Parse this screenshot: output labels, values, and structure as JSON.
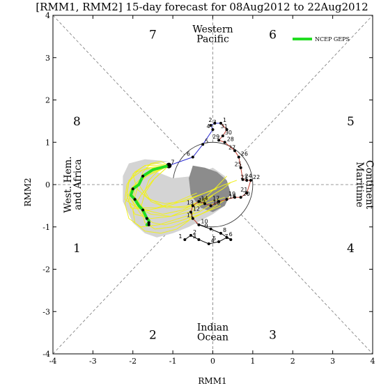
{
  "chart_data": {
    "type": "line",
    "title": "[RMM1, RMM2] 15-day forecast for 08Aug2012 to 22Aug2012",
    "xlabel": "RMM1",
    "ylabel": "RMM2",
    "xlim": [
      -4,
      4
    ],
    "ylim": [
      -4,
      4
    ],
    "x_ticks": [
      "-4",
      "-3",
      "-2",
      "-1",
      "0",
      "1",
      "2",
      "3",
      "4"
    ],
    "y_ticks": [
      "-4",
      "-3",
      "-2",
      "-1",
      "0",
      "1",
      "2",
      "3",
      "4"
    ],
    "grid": false,
    "legend_position": "top-right",
    "phases": [
      {
        "label": "1",
        "x": -3.4,
        "y": -1.5
      },
      {
        "label": "2",
        "x": -1.5,
        "y": -3.55
      },
      {
        "label": "3",
        "x": 1.5,
        "y": -3.55
      },
      {
        "label": "4",
        "x": 3.45,
        "y": -1.5
      },
      {
        "label": "5",
        "x": 3.45,
        "y": 1.5
      },
      {
        "label": "6",
        "x": 1.5,
        "y": 3.55
      },
      {
        "label": "7",
        "x": -1.5,
        "y": 3.55
      },
      {
        "label": "8",
        "x": -3.4,
        "y": 1.5
      }
    ],
    "regions": [
      {
        "name": "western_pacific",
        "lines": [
          "Western",
          "Pacific"
        ]
      },
      {
        "name": "indian_ocean",
        "lines": [
          "Indian",
          "Ocean"
        ]
      },
      {
        "name": "west_hem_africa",
        "lines": [
          "West. Hem.",
          "and Africa"
        ]
      },
      {
        "name": "maritime_continent",
        "lines": [
          "Maritime",
          "Continent"
        ]
      }
    ],
    "observed": {
      "color_early": "#000000",
      "color_mid": "#c0392b",
      "color_late": "#2a2ad0",
      "points": [
        {
          "day": "1",
          "x": -0.7,
          "y": -1.3
        },
        {
          "day": "2",
          "x": -0.55,
          "y": -1.2
        },
        {
          "day": "3",
          "x": -0.35,
          "y": -1.3
        },
        {
          "day": "4",
          "x": -0.1,
          "y": -1.4
        },
        {
          "day": "5",
          "x": 0.15,
          "y": -1.35
        },
        {
          "day": "6",
          "x": 0.35,
          "y": -1.25
        },
        {
          "day": "7",
          "x": 0.45,
          "y": -1.3
        },
        {
          "day": "8",
          "x": 0.2,
          "y": -1.15
        },
        {
          "day": "9",
          "x": -0.05,
          "y": -1.05
        },
        {
          "day": "10",
          "x": -0.35,
          "y": -0.95
        },
        {
          "day": "11",
          "x": -0.5,
          "y": -0.8
        },
        {
          "day": "12",
          "x": -0.55,
          "y": -0.65
        },
        {
          "day": "13",
          "x": -0.5,
          "y": -0.5
        },
        {
          "day": "14",
          "x": -0.35,
          "y": -0.4
        },
        {
          "day": "15",
          "x": -0.2,
          "y": -0.45
        },
        {
          "day": "16",
          "x": -0.05,
          "y": -0.5
        },
        {
          "day": "17",
          "x": 0.15,
          "y": -0.4
        },
        {
          "day": "18",
          "x": 0.35,
          "y": -0.35
        },
        {
          "day": "19",
          "x": 0.55,
          "y": -0.3
        },
        {
          "day": "20",
          "x": 0.7,
          "y": -0.3
        },
        {
          "day": "21",
          "x": 0.85,
          "y": -0.2
        },
        {
          "day": "22",
          "x": 0.95,
          "y": 0.1
        },
        {
          "day": "23",
          "x": 0.85,
          "y": 0.1
        },
        {
          "day": "24",
          "x": 0.75,
          "y": 0.12
        },
        {
          "day": "25",
          "x": 0.7,
          "y": 0.4
        },
        {
          "day": "26",
          "x": 0.65,
          "y": 0.65
        },
        {
          "day": "27",
          "x": 0.55,
          "y": 0.8
        },
        {
          "day": "28",
          "x": 0.3,
          "y": 1.0
        },
        {
          "day": "29",
          "x": 0.15,
          "y": 1.05
        },
        {
          "day": "30",
          "x": 0.25,
          "y": 1.15
        },
        {
          "day": "31",
          "x": 0.35,
          "y": 1.3
        },
        {
          "day": "1",
          "x": 0.2,
          "y": 1.45
        },
        {
          "day": "2",
          "x": 0.05,
          "y": 1.45
        },
        {
          "day": "3",
          "x": -0.05,
          "y": 1.4
        },
        {
          "day": "4",
          "x": 0.0,
          "y": 1.3
        },
        {
          "day": "5",
          "x": -0.25,
          "y": 0.95
        },
        {
          "day": "6",
          "x": -0.5,
          "y": 0.65
        },
        {
          "day": "7",
          "x": -1.1,
          "y": 0.45
        }
      ]
    },
    "ensemble_mean": {
      "name": "NCEP GEPS",
      "color": "#22dd22",
      "x": [
        -1.1,
        -1.5,
        -1.75,
        -1.85,
        -2.0,
        -2.05,
        -1.95,
        -1.85,
        -1.75,
        -1.7,
        -1.65,
        -1.6,
        -1.6,
        -1.65,
        -1.6
      ],
      "y": [
        0.45,
        0.35,
        0.2,
        0.0,
        -0.1,
        -0.25,
        -0.35,
        -0.5,
        -0.6,
        -0.7,
        -0.8,
        -0.85,
        -0.9,
        -0.95,
        -0.95
      ]
    },
    "members_color": "#f0f020",
    "members": [
      {
        "x": [
          -1.1,
          -1.6,
          -1.9,
          -2.1,
          -2.15,
          -2.05,
          -1.6,
          -1.1,
          -0.5,
          0.1
        ],
        "y": [
          0.45,
          0.4,
          0.3,
          0.05,
          -0.25,
          -0.55,
          -0.6,
          -0.5,
          -0.3,
          -0.1
        ]
      },
      {
        "x": [
          -1.1,
          -1.55,
          -1.85,
          -2.05,
          -2.1,
          -1.95,
          -1.55,
          -1.05,
          -0.55,
          -0.15
        ],
        "y": [
          0.45,
          0.3,
          0.1,
          -0.1,
          -0.4,
          -0.7,
          -0.8,
          -0.75,
          -0.55,
          -0.35
        ]
      },
      {
        "x": [
          -1.1,
          -1.4,
          -1.7,
          -1.95,
          -2.15,
          -2.2,
          -1.9,
          -1.4,
          -0.9,
          -0.4
        ],
        "y": [
          0.45,
          0.5,
          0.45,
          0.3,
          0.0,
          -0.35,
          -0.55,
          -0.55,
          -0.4,
          -0.2
        ]
      },
      {
        "x": [
          -1.1,
          -1.6,
          -1.95,
          -2.0,
          -1.8,
          -1.5,
          -1.2,
          -0.8,
          -0.3,
          0.2
        ],
        "y": [
          0.45,
          0.25,
          -0.05,
          -0.4,
          -0.7,
          -0.9,
          -0.95,
          -0.85,
          -0.7,
          -0.5
        ]
      },
      {
        "x": [
          -1.1,
          -1.45,
          -1.7,
          -1.8,
          -1.7,
          -1.45,
          -1.0,
          -0.5,
          0.0,
          0.4
        ],
        "y": [
          0.45,
          0.15,
          -0.2,
          -0.55,
          -0.9,
          -1.05,
          -1.0,
          -0.8,
          -0.55,
          -0.3
        ]
      },
      {
        "x": [
          -1.1,
          -1.7,
          -2.0,
          -1.9,
          -1.6,
          -1.2,
          -0.7,
          -0.2,
          0.3,
          0.6
        ],
        "y": [
          0.45,
          0.45,
          0.25,
          -0.1,
          -0.35,
          -0.45,
          -0.4,
          -0.2,
          0.0,
          0.1
        ]
      },
      {
        "x": [
          -1.1,
          -1.5,
          -1.8,
          -2.0,
          -1.95,
          -1.7,
          -1.3,
          -0.9,
          -0.6,
          -0.45
        ],
        "y": [
          0.45,
          0.1,
          -0.25,
          -0.6,
          -0.9,
          -1.1,
          -1.15,
          -1.05,
          -0.85,
          -0.6
        ]
      },
      {
        "x": [
          -1.1,
          -1.3,
          -1.55,
          -1.75,
          -1.85,
          -1.65,
          -1.25,
          -0.75,
          -0.2,
          0.3
        ],
        "y": [
          0.45,
          0.55,
          0.5,
          0.3,
          0.0,
          -0.3,
          -0.5,
          -0.55,
          -0.45,
          -0.3
        ]
      },
      {
        "x": [
          -1.1,
          -1.55,
          -1.85,
          -1.95,
          -1.7,
          -1.25,
          -0.75,
          -0.25,
          0.1,
          0.35
        ],
        "y": [
          0.45,
          0.35,
          0.05,
          -0.3,
          -0.6,
          -0.7,
          -0.6,
          -0.35,
          -0.05,
          0.2
        ]
      },
      {
        "x": [
          -1.1,
          -1.65,
          -2.05,
          -2.2,
          -2.1,
          -1.8,
          -1.35,
          -0.85,
          -0.35,
          0.0
        ],
        "y": [
          0.45,
          0.2,
          -0.1,
          -0.45,
          -0.8,
          -1.0,
          -0.95,
          -0.8,
          -0.65,
          -0.45
        ]
      },
      {
        "x": [
          -1.1,
          -1.4,
          -1.6,
          -1.7,
          -1.55,
          -1.15,
          -0.6,
          -0.1,
          0.25,
          0.45
        ],
        "y": [
          0.45,
          0.3,
          0.1,
          -0.15,
          -0.4,
          -0.55,
          -0.5,
          -0.3,
          -0.1,
          0.05
        ]
      },
      {
        "x": [
          -1.1,
          -1.75,
          -2.1,
          -2.15,
          -1.95,
          -1.55,
          -1.05,
          -0.6,
          -0.25,
          0.0
        ],
        "y": [
          0.45,
          0.35,
          0.1,
          -0.2,
          -0.5,
          -0.7,
          -0.75,
          -0.65,
          -0.45,
          -0.25
        ]
      }
    ],
    "plume_outer": {
      "color": "#d4d4d4",
      "x": [
        -1.1,
        -1.7,
        -2.1,
        -2.25,
        -2.25,
        -2.0,
        -1.7,
        -1.4,
        -1.0,
        -0.6,
        -0.3,
        0.0,
        0.3,
        0.45,
        0.3,
        0.0,
        -0.5,
        -1.0,
        -1.4,
        -1.7
      ],
      "y": [
        0.55,
        0.6,
        0.5,
        0.2,
        -0.4,
        -0.9,
        -1.15,
        -1.25,
        -1.15,
        -1.0,
        -0.85,
        -0.7,
        -0.5,
        -0.2,
        0.2,
        0.4,
        0.2,
        0.15,
        0.3,
        0.45
      ]
    },
    "plume_inner": {
      "color": "#8c8c8c",
      "x": [
        -0.5,
        -0.2,
        0.1,
        0.35,
        0.45,
        0.3,
        0.0,
        -0.3,
        -0.55,
        -0.6
      ],
      "y": [
        0.45,
        0.4,
        0.3,
        0.1,
        -0.2,
        -0.5,
        -0.65,
        -0.55,
        -0.25,
        0.15
      ]
    }
  }
}
